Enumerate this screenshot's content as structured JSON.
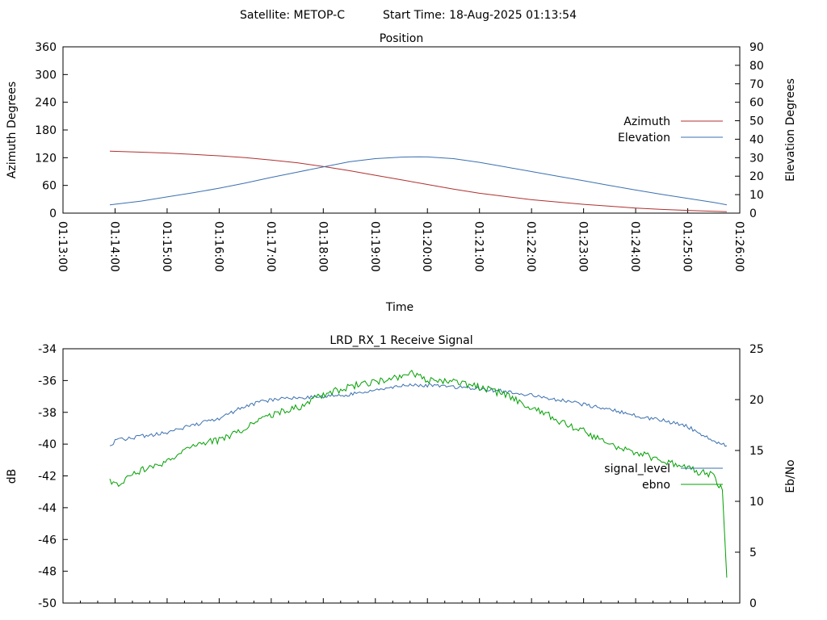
{
  "header": {
    "satellite_label": "Satellite: METOP-C",
    "start_time_label": "Start Time: 18-Aug-2025 01:13:54"
  },
  "chart_data": [
    {
      "type": "line",
      "title": "Position",
      "xlabel": "Time",
      "ylabel_left": "Azimuth Degrees",
      "ylabel_right": "Elevation Degrees",
      "xlim": [
        "01:13:00",
        "01:26:00"
      ],
      "ylim_left": [
        0,
        360
      ],
      "ylim_right": [
        0,
        90
      ],
      "x_ticks": [
        "01:13:00",
        "01:14:00",
        "01:15:00",
        "01:16:00",
        "01:17:00",
        "01:18:00",
        "01:19:00",
        "01:20:00",
        "01:21:00",
        "01:22:00",
        "01:23:00",
        "01:24:00",
        "01:25:00",
        "01:26:00"
      ],
      "y_ticks_left": [
        "0",
        "60",
        "120",
        "180",
        "240",
        "300",
        "360"
      ],
      "y_ticks_right": [
        "0",
        "10",
        "20",
        "30",
        "40",
        "50",
        "60",
        "70",
        "80",
        "90"
      ],
      "legend_position": "right",
      "series": [
        {
          "name": "Azimuth",
          "axis": "left",
          "color": "#b03030",
          "x": [
            "01:13:54",
            "01:14:30",
            "01:15:00",
            "01:15:30",
            "01:16:00",
            "01:16:30",
            "01:17:00",
            "01:17:30",
            "01:18:00",
            "01:18:30",
            "01:19:00",
            "01:19:30",
            "01:20:00",
            "01:20:30",
            "01:21:00",
            "01:21:30",
            "01:22:00",
            "01:22:30",
            "01:23:00",
            "01:23:30",
            "01:24:00",
            "01:24:30",
            "01:25:00",
            "01:25:30",
            "01:25:45"
          ],
          "y": [
            134,
            132,
            130,
            127,
            124,
            120,
            115,
            109,
            101,
            92,
            82,
            72,
            62,
            52,
            43,
            36,
            29,
            24,
            19,
            15,
            11,
            8,
            6,
            4,
            3
          ]
        },
        {
          "name": "Elevation",
          "axis": "right",
          "color": "#3a70b0",
          "x": [
            "01:13:54",
            "01:14:30",
            "01:15:00",
            "01:15:30",
            "01:16:00",
            "01:16:30",
            "01:17:00",
            "01:17:30",
            "01:18:00",
            "01:18:30",
            "01:19:00",
            "01:19:30",
            "01:19:50",
            "01:20:00",
            "01:20:30",
            "01:21:00",
            "01:21:30",
            "01:22:00",
            "01:22:30",
            "01:23:00",
            "01:23:30",
            "01:24:00",
            "01:24:30",
            "01:25:00",
            "01:25:30",
            "01:25:45"
          ],
          "y": [
            4.5,
            6.5,
            8.8,
            11.0,
            13.5,
            16.3,
            19.3,
            22.2,
            25.0,
            27.8,
            29.5,
            30.3,
            30.5,
            30.4,
            29.5,
            27.5,
            25.0,
            22.5,
            20.0,
            17.5,
            15.0,
            12.5,
            10.2,
            8.0,
            5.8,
            4.5
          ]
        }
      ]
    },
    {
      "type": "line",
      "title": "LRD_RX_1 Receive Signal",
      "ylabel_left": "dB",
      "ylabel_right": "Eb/No",
      "xlim": [
        "01:13:00",
        "01:26:00"
      ],
      "ylim_left": [
        -50,
        -34
      ],
      "ylim_right": [
        0,
        25
      ],
      "y_ticks_left": [
        "-34",
        "-36",
        "-38",
        "-40",
        "-42",
        "-44",
        "-46",
        "-48",
        "-50"
      ],
      "y_ticks_right": [
        "0",
        "5",
        "10",
        "15",
        "20",
        "25"
      ],
      "legend_position": "right",
      "series": [
        {
          "name": "signal_level",
          "axis": "left",
          "color": "#3a70b0",
          "x": [
            "01:13:54",
            "01:14:00",
            "01:14:30",
            "01:15:00",
            "01:15:30",
            "01:16:00",
            "01:16:30",
            "01:17:00",
            "01:17:30",
            "01:18:00",
            "01:18:30",
            "01:19:00",
            "01:19:30",
            "01:20:00",
            "01:20:30",
            "01:21:00",
            "01:21:30",
            "01:22:00",
            "01:22:30",
            "01:23:00",
            "01:23:30",
            "01:24:00",
            "01:24:30",
            "01:25:00",
            "01:25:30",
            "01:25:45"
          ],
          "y": [
            -40.2,
            -39.8,
            -39.5,
            -39.3,
            -38.8,
            -38.4,
            -37.6,
            -37.2,
            -37.1,
            -37.0,
            -36.9,
            -36.6,
            -36.3,
            -36.3,
            -36.4,
            -36.5,
            -36.7,
            -36.9,
            -37.2,
            -37.5,
            -37.8,
            -38.2,
            -38.5,
            -38.9,
            -39.8,
            -40.1
          ]
        },
        {
          "name": "ebno",
          "axis": "right",
          "color": "#00a000",
          "x": [
            "01:13:54",
            "01:14:00",
            "01:14:30",
            "01:15:00",
            "01:15:30",
            "01:16:00",
            "01:16:30",
            "01:17:00",
            "01:17:30",
            "01:18:00",
            "01:18:30",
            "01:19:00",
            "01:19:30",
            "01:19:40",
            "01:20:00",
            "01:20:30",
            "01:21:00",
            "01:21:30",
            "01:22:00",
            "01:22:30",
            "01:23:00",
            "01:23:30",
            "01:24:00",
            "01:24:30",
            "01:25:00",
            "01:25:30",
            "01:25:40",
            "01:25:45"
          ],
          "y": [
            12.0,
            11.5,
            13.0,
            14.0,
            15.5,
            16.0,
            17.2,
            18.5,
            19.2,
            20.5,
            21.3,
            21.7,
            22.2,
            22.6,
            21.9,
            21.7,
            21.2,
            20.5,
            19.3,
            18.0,
            16.9,
            15.5,
            14.8,
            14.0,
            13.2,
            12.5,
            11.0,
            2.5
          ]
        }
      ]
    }
  ]
}
